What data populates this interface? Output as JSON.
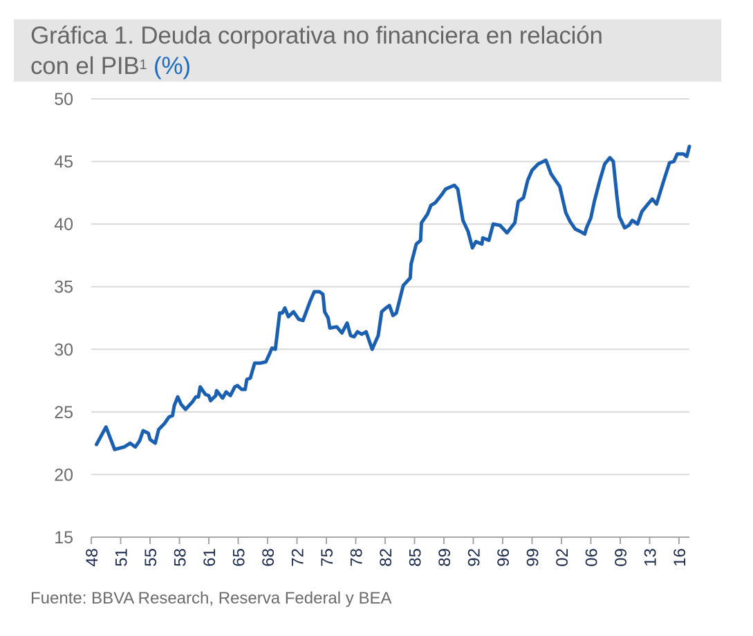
{
  "chart_data": {
    "type": "line",
    "title": "Gráfica 1. Deuda corporativa no financiera en relación con el PIB",
    "title_line1": "Gráfica 1. Deuda corporativa no financiera en relación",
    "title_line2": "con el PIB",
    "title_superscript": "1",
    "title_unit": "(%)",
    "source": "Fuente: BBVA Research, Reserva Federal y BEA",
    "ylim": [
      15,
      50
    ],
    "yticks": [
      "15",
      "20",
      "25",
      "30",
      "35",
      "40",
      "45",
      "50"
    ],
    "xlim": [
      1948,
      2017.2
    ],
    "xtick_labels": [
      "48",
      "51",
      "55",
      "58",
      "61",
      "65",
      "68",
      "72",
      "75",
      "78",
      "82",
      "85",
      "89",
      "92",
      "96",
      "99",
      "02",
      "06",
      "09",
      "13",
      "16"
    ],
    "grid": true,
    "line_color": "#1a5fb0",
    "title_unit_color": "#1c6bbf",
    "series": [
      {
        "x": [
          1948.6,
          1949.7,
          1950.7,
          1951.8,
          1952.5,
          1953.1,
          1953.6,
          1954.0,
          1954.6,
          1954.8,
          1955.4,
          1955.8,
          1956.5,
          1957.0,
          1957.4,
          1957.6,
          1958.0,
          1958.4,
          1958.9,
          1959.3,
          1959.7,
          1960.1,
          1960.4,
          1960.6,
          1961.2,
          1961.6,
          1961.8,
          1962.4,
          1962.5,
          1963.2,
          1963.6,
          1964.1,
          1964.6,
          1964.9,
          1965.4,
          1965.8,
          1966.0,
          1966.4,
          1966.9,
          1967.6,
          1968.2,
          1968.6,
          1968.9,
          1969.3,
          1969.8,
          1970.1,
          1970.4,
          1970.8,
          1971.4,
          1972.0,
          1972.5,
          1973.3,
          1973.8,
          1974.4,
          1974.8,
          1975.0,
          1975.4,
          1975.6,
          1976.4,
          1977.0,
          1977.6,
          1978.0,
          1978.4,
          1978.8,
          1979.3,
          1979.8,
          1980.5,
          1981.2,
          1981.6,
          1982.1,
          1982.5,
          1982.9,
          1983.3,
          1984.1,
          1984.9,
          1985.0,
          1985.6,
          1986.1,
          1986.2,
          1986.9,
          1987.3,
          1987.8,
          1988.6,
          1989.0,
          1990.0,
          1990.4,
          1991.0,
          1991.6,
          1992.1,
          1992.5,
          1993.2,
          1993.3,
          1994.0,
          1994.5,
          1995.3,
          1996.1,
          1997.0,
          1997.4,
          1998.0,
          1998.5,
          1999.0,
          1999.7,
          2000.6,
          2001.2,
          2002.2,
          2002.9,
          2003.4,
          2004.0,
          2004.6,
          2005.1,
          2005.3,
          2005.8,
          2006.2,
          2006.8,
          2007.4,
          2008.0,
          2008.4,
          2008.8,
          2009.1,
          2009.7,
          2010.2,
          2010.6,
          2011.2,
          2011.7,
          2012.4,
          2012.9,
          2013.4,
          2014.2,
          2014.9,
          2015.4,
          2015.8,
          2016.5,
          2016.9,
          2017.2
        ],
        "y": [
          22.4,
          23.8,
          22.0,
          22.2,
          22.5,
          22.2,
          22.7,
          23.5,
          23.3,
          22.8,
          22.5,
          23.6,
          24.1,
          24.6,
          24.7,
          25.5,
          26.2,
          25.6,
          25.2,
          25.5,
          25.8,
          26.2,
          26.2,
          27.0,
          26.4,
          26.3,
          25.9,
          26.3,
          26.7,
          26.1,
          26.6,
          26.3,
          27.0,
          27.1,
          26.8,
          26.8,
          27.6,
          27.7,
          28.9,
          28.9,
          29.0,
          29.6,
          30.1,
          30.0,
          32.9,
          32.9,
          33.3,
          32.6,
          33.0,
          32.4,
          32.3,
          33.8,
          34.6,
          34.6,
          34.4,
          33.0,
          32.5,
          31.7,
          31.8,
          31.3,
          32.1,
          31.1,
          31.0,
          31.4,
          31.2,
          31.4,
          30.0,
          31.1,
          33.0,
          33.3,
          33.5,
          32.7,
          32.9,
          35.1,
          35.7,
          36.8,
          38.4,
          38.7,
          40.1,
          40.8,
          41.5,
          41.7,
          42.4,
          42.8,
          43.1,
          42.8,
          40.3,
          39.4,
          38.1,
          38.6,
          38.4,
          38.9,
          38.7,
          40.0,
          39.9,
          39.3,
          40.1,
          41.8,
          42.1,
          43.5,
          44.3,
          44.8,
          45.1,
          44.0,
          43.0,
          40.9,
          40.2,
          39.6,
          39.4,
          39.2,
          39.7,
          40.5,
          41.8,
          43.4,
          44.8,
          45.3,
          45.0,
          42.3,
          40.6,
          39.7,
          39.9,
          40.3,
          40.0,
          41.0,
          41.6,
          42.0,
          41.6,
          43.4,
          44.9,
          45.0,
          45.6,
          45.6,
          45.4,
          46.2
        ]
      }
    ]
  }
}
